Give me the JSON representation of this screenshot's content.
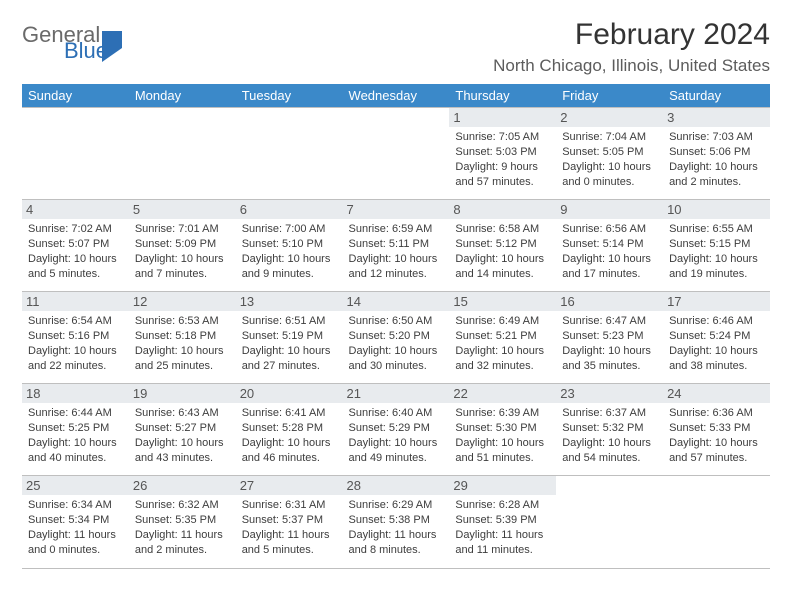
{
  "logo": {
    "line1": "General",
    "line2": "Blue"
  },
  "header": {
    "month_title": "February 2024",
    "location": "North Chicago, Illinois, United States"
  },
  "calendar": {
    "day_headers": [
      "Sunday",
      "Monday",
      "Tuesday",
      "Wednesday",
      "Thursday",
      "Friday",
      "Saturday"
    ],
    "colors": {
      "header_bg": "#3b89c9",
      "header_text": "#ffffff",
      "daynum_bg": "#e8ebee",
      "daynum_text": "#555555",
      "body_text": "#3d3d3d",
      "rule": "#bfbfbf"
    },
    "first_weekday_index": 4,
    "days": [
      {
        "n": "1",
        "sunrise": "Sunrise: 7:05 AM",
        "sunset": "Sunset: 5:03 PM",
        "daylight": "Daylight: 9 hours and 57 minutes."
      },
      {
        "n": "2",
        "sunrise": "Sunrise: 7:04 AM",
        "sunset": "Sunset: 5:05 PM",
        "daylight": "Daylight: 10 hours and 0 minutes."
      },
      {
        "n": "3",
        "sunrise": "Sunrise: 7:03 AM",
        "sunset": "Sunset: 5:06 PM",
        "daylight": "Daylight: 10 hours and 2 minutes."
      },
      {
        "n": "4",
        "sunrise": "Sunrise: 7:02 AM",
        "sunset": "Sunset: 5:07 PM",
        "daylight": "Daylight: 10 hours and 5 minutes."
      },
      {
        "n": "5",
        "sunrise": "Sunrise: 7:01 AM",
        "sunset": "Sunset: 5:09 PM",
        "daylight": "Daylight: 10 hours and 7 minutes."
      },
      {
        "n": "6",
        "sunrise": "Sunrise: 7:00 AM",
        "sunset": "Sunset: 5:10 PM",
        "daylight": "Daylight: 10 hours and 9 minutes."
      },
      {
        "n": "7",
        "sunrise": "Sunrise: 6:59 AM",
        "sunset": "Sunset: 5:11 PM",
        "daylight": "Daylight: 10 hours and 12 minutes."
      },
      {
        "n": "8",
        "sunrise": "Sunrise: 6:58 AM",
        "sunset": "Sunset: 5:12 PM",
        "daylight": "Daylight: 10 hours and 14 minutes."
      },
      {
        "n": "9",
        "sunrise": "Sunrise: 6:56 AM",
        "sunset": "Sunset: 5:14 PM",
        "daylight": "Daylight: 10 hours and 17 minutes."
      },
      {
        "n": "10",
        "sunrise": "Sunrise: 6:55 AM",
        "sunset": "Sunset: 5:15 PM",
        "daylight": "Daylight: 10 hours and 19 minutes."
      },
      {
        "n": "11",
        "sunrise": "Sunrise: 6:54 AM",
        "sunset": "Sunset: 5:16 PM",
        "daylight": "Daylight: 10 hours and 22 minutes."
      },
      {
        "n": "12",
        "sunrise": "Sunrise: 6:53 AM",
        "sunset": "Sunset: 5:18 PM",
        "daylight": "Daylight: 10 hours and 25 minutes."
      },
      {
        "n": "13",
        "sunrise": "Sunrise: 6:51 AM",
        "sunset": "Sunset: 5:19 PM",
        "daylight": "Daylight: 10 hours and 27 minutes."
      },
      {
        "n": "14",
        "sunrise": "Sunrise: 6:50 AM",
        "sunset": "Sunset: 5:20 PM",
        "daylight": "Daylight: 10 hours and 30 minutes."
      },
      {
        "n": "15",
        "sunrise": "Sunrise: 6:49 AM",
        "sunset": "Sunset: 5:21 PM",
        "daylight": "Daylight: 10 hours and 32 minutes."
      },
      {
        "n": "16",
        "sunrise": "Sunrise: 6:47 AM",
        "sunset": "Sunset: 5:23 PM",
        "daylight": "Daylight: 10 hours and 35 minutes."
      },
      {
        "n": "17",
        "sunrise": "Sunrise: 6:46 AM",
        "sunset": "Sunset: 5:24 PM",
        "daylight": "Daylight: 10 hours and 38 minutes."
      },
      {
        "n": "18",
        "sunrise": "Sunrise: 6:44 AM",
        "sunset": "Sunset: 5:25 PM",
        "daylight": "Daylight: 10 hours and 40 minutes."
      },
      {
        "n": "19",
        "sunrise": "Sunrise: 6:43 AM",
        "sunset": "Sunset: 5:27 PM",
        "daylight": "Daylight: 10 hours and 43 minutes."
      },
      {
        "n": "20",
        "sunrise": "Sunrise: 6:41 AM",
        "sunset": "Sunset: 5:28 PM",
        "daylight": "Daylight: 10 hours and 46 minutes."
      },
      {
        "n": "21",
        "sunrise": "Sunrise: 6:40 AM",
        "sunset": "Sunset: 5:29 PM",
        "daylight": "Daylight: 10 hours and 49 minutes."
      },
      {
        "n": "22",
        "sunrise": "Sunrise: 6:39 AM",
        "sunset": "Sunset: 5:30 PM",
        "daylight": "Daylight: 10 hours and 51 minutes."
      },
      {
        "n": "23",
        "sunrise": "Sunrise: 6:37 AM",
        "sunset": "Sunset: 5:32 PM",
        "daylight": "Daylight: 10 hours and 54 minutes."
      },
      {
        "n": "24",
        "sunrise": "Sunrise: 6:36 AM",
        "sunset": "Sunset: 5:33 PM",
        "daylight": "Daylight: 10 hours and 57 minutes."
      },
      {
        "n": "25",
        "sunrise": "Sunrise: 6:34 AM",
        "sunset": "Sunset: 5:34 PM",
        "daylight": "Daylight: 11 hours and 0 minutes."
      },
      {
        "n": "26",
        "sunrise": "Sunrise: 6:32 AM",
        "sunset": "Sunset: 5:35 PM",
        "daylight": "Daylight: 11 hours and 2 minutes."
      },
      {
        "n": "27",
        "sunrise": "Sunrise: 6:31 AM",
        "sunset": "Sunset: 5:37 PM",
        "daylight": "Daylight: 11 hours and 5 minutes."
      },
      {
        "n": "28",
        "sunrise": "Sunrise: 6:29 AM",
        "sunset": "Sunset: 5:38 PM",
        "daylight": "Daylight: 11 hours and 8 minutes."
      },
      {
        "n": "29",
        "sunrise": "Sunrise: 6:28 AM",
        "sunset": "Sunset: 5:39 PM",
        "daylight": "Daylight: 11 hours and 11 minutes."
      }
    ]
  }
}
